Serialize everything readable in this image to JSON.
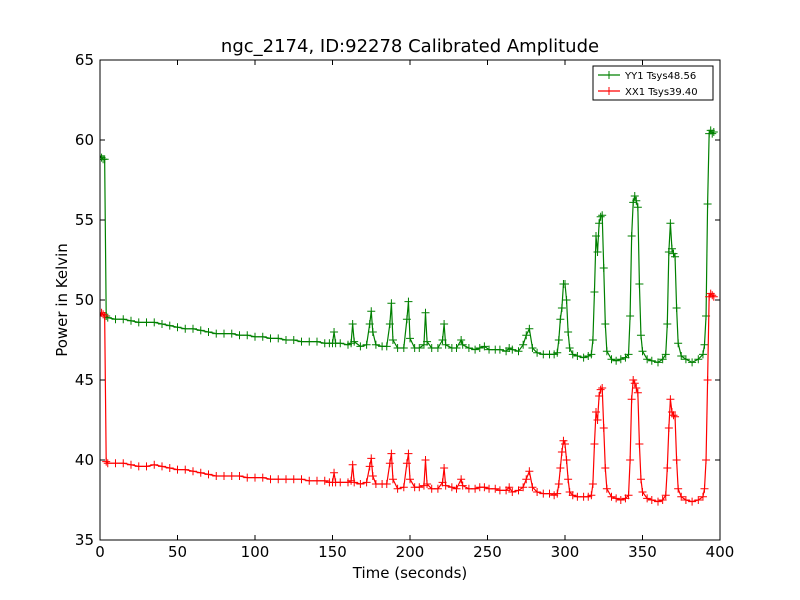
{
  "chart_data": {
    "type": "line",
    "title": "ngc_2174, ID:92278 Calibrated Amplitude",
    "xlabel": "Time (seconds)",
    "ylabel": "Power in Kelvin",
    "xlim": [
      0,
      400
    ],
    "ylim": [
      35,
      65
    ],
    "xticks": [
      0,
      50,
      100,
      150,
      200,
      250,
      300,
      350,
      400
    ],
    "yticks": [
      35,
      40,
      45,
      50,
      55,
      60,
      65
    ],
    "grid": false,
    "legend_position": "top-right",
    "marker": "+",
    "series": [
      {
        "name": "YY1 Tsys48.56",
        "color": "#008000",
        "points": [
          [
            0,
            59.0
          ],
          [
            1,
            58.9
          ],
          [
            2,
            58.8
          ],
          [
            3,
            58.8
          ],
          [
            4,
            49.0
          ],
          [
            5,
            48.9
          ],
          [
            10,
            48.8
          ],
          [
            15,
            48.8
          ],
          [
            20,
            48.7
          ],
          [
            25,
            48.6
          ],
          [
            30,
            48.6
          ],
          [
            35,
            48.6
          ],
          [
            40,
            48.5
          ],
          [
            45,
            48.4
          ],
          [
            50,
            48.3
          ],
          [
            55,
            48.2
          ],
          [
            60,
            48.2
          ],
          [
            65,
            48.1
          ],
          [
            70,
            48.0
          ],
          [
            75,
            47.9
          ],
          [
            80,
            47.9
          ],
          [
            85,
            47.9
          ],
          [
            90,
            47.8
          ],
          [
            95,
            47.8
          ],
          [
            100,
            47.7
          ],
          [
            105,
            47.7
          ],
          [
            110,
            47.6
          ],
          [
            115,
            47.6
          ],
          [
            120,
            47.5
          ],
          [
            125,
            47.5
          ],
          [
            130,
            47.4
          ],
          [
            135,
            47.4
          ],
          [
            140,
            47.4
          ],
          [
            145,
            47.3
          ],
          [
            148,
            47.3
          ],
          [
            150,
            47.3
          ],
          [
            151,
            48.0
          ],
          [
            152,
            47.3
          ],
          [
            155,
            47.3
          ],
          [
            160,
            47.2
          ],
          [
            162,
            47.3
          ],
          [
            163,
            48.5
          ],
          [
            164,
            47.4
          ],
          [
            168,
            47.1
          ],
          [
            172,
            47.2
          ],
          [
            174,
            48.5
          ],
          [
            175,
            49.3
          ],
          [
            176,
            48.0
          ],
          [
            178,
            47.2
          ],
          [
            182,
            47.1
          ],
          [
            185,
            47.1
          ],
          [
            187,
            48.5
          ],
          [
            188,
            49.8
          ],
          [
            189,
            47.5
          ],
          [
            192,
            47.0
          ],
          [
            196,
            47.0
          ],
          [
            198,
            48.8
          ],
          [
            199,
            49.9
          ],
          [
            200,
            47.6
          ],
          [
            203,
            47.0
          ],
          [
            206,
            47.0
          ],
          [
            209,
            47.2
          ],
          [
            210,
            49.2
          ],
          [
            211,
            47.4
          ],
          [
            214,
            47.0
          ],
          [
            218,
            47.0
          ],
          [
            221,
            47.5
          ],
          [
            222,
            48.5
          ],
          [
            223,
            47.2
          ],
          [
            227,
            47.0
          ],
          [
            230,
            47.0
          ],
          [
            233,
            47.5
          ],
          [
            234,
            47.2
          ],
          [
            238,
            47.0
          ],
          [
            242,
            46.9
          ],
          [
            245,
            47.0
          ],
          [
            248,
            47.1
          ],
          [
            251,
            46.9
          ],
          [
            255,
            46.9
          ],
          [
            258,
            46.9
          ],
          [
            262,
            46.8
          ],
          [
            264,
            47.0
          ],
          [
            266,
            46.9
          ],
          [
            270,
            46.8
          ],
          [
            273,
            47.2
          ],
          [
            275,
            47.8
          ],
          [
            277,
            48.2
          ],
          [
            279,
            47.0
          ],
          [
            282,
            46.7
          ],
          [
            286,
            46.6
          ],
          [
            290,
            46.6
          ],
          [
            293,
            46.6
          ],
          [
            295,
            46.7
          ],
          [
            296,
            47.5
          ],
          [
            297,
            48.8
          ],
          [
            298,
            49.5
          ],
          [
            299,
            51.0
          ],
          [
            300,
            51.0
          ],
          [
            301,
            50.0
          ],
          [
            302,
            48.0
          ],
          [
            303,
            47.0
          ],
          [
            305,
            46.6
          ],
          [
            308,
            46.5
          ],
          [
            312,
            46.4
          ],
          [
            315,
            46.5
          ],
          [
            317,
            46.6
          ],
          [
            318,
            47.5
          ],
          [
            319,
            50.5
          ],
          [
            320,
            54.0
          ],
          [
            321,
            53.0
          ],
          [
            322,
            54.8
          ],
          [
            323,
            55.2
          ],
          [
            324,
            55.3
          ],
          [
            325,
            52.0
          ],
          [
            326,
            48.5
          ],
          [
            327,
            46.8
          ],
          [
            330,
            46.3
          ],
          [
            333,
            46.2
          ],
          [
            336,
            46.3
          ],
          [
            339,
            46.4
          ],
          [
            341,
            46.6
          ],
          [
            342,
            49.0
          ],
          [
            343,
            54.0
          ],
          [
            344,
            56.1
          ],
          [
            345,
            56.5
          ],
          [
            346,
            56.2
          ],
          [
            347,
            55.8
          ],
          [
            348,
            51.0
          ],
          [
            349,
            47.8
          ],
          [
            350,
            46.8
          ],
          [
            353,
            46.3
          ],
          [
            356,
            46.2
          ],
          [
            360,
            46.1
          ],
          [
            363,
            46.3
          ],
          [
            365,
            46.6
          ],
          [
            366,
            48.5
          ],
          [
            367,
            53.0
          ],
          [
            368,
            54.8
          ],
          [
            369,
            53.2
          ],
          [
            370,
            52.9
          ],
          [
            371,
            52.7
          ],
          [
            372,
            49.5
          ],
          [
            373,
            47.3
          ],
          [
            375,
            46.5
          ],
          [
            378,
            46.3
          ],
          [
            382,
            46.1
          ],
          [
            386,
            46.3
          ],
          [
            389,
            46.6
          ],
          [
            390,
            47.2
          ],
          [
            391,
            49.0
          ],
          [
            392,
            56.0
          ],
          [
            393,
            60.4
          ],
          [
            394,
            60.6
          ],
          [
            395,
            60.4
          ],
          [
            396,
            60.5
          ]
        ]
      },
      {
        "name": "XX1 Tsys39.40",
        "color": "#ff0000",
        "points": [
          [
            0,
            49.0
          ],
          [
            1,
            49.2
          ],
          [
            2,
            49.1
          ],
          [
            3,
            49.0
          ],
          [
            4,
            39.9
          ],
          [
            5,
            39.8
          ],
          [
            10,
            39.8
          ],
          [
            15,
            39.8
          ],
          [
            20,
            39.7
          ],
          [
            25,
            39.6
          ],
          [
            30,
            39.6
          ],
          [
            35,
            39.7
          ],
          [
            40,
            39.6
          ],
          [
            45,
            39.5
          ],
          [
            50,
            39.4
          ],
          [
            55,
            39.4
          ],
          [
            60,
            39.3
          ],
          [
            65,
            39.2
          ],
          [
            70,
            39.1
          ],
          [
            75,
            39.0
          ],
          [
            80,
            39.0
          ],
          [
            85,
            39.0
          ],
          [
            90,
            39.0
          ],
          [
            95,
            38.9
          ],
          [
            100,
            38.9
          ],
          [
            105,
            38.9
          ],
          [
            110,
            38.8
          ],
          [
            115,
            38.8
          ],
          [
            120,
            38.8
          ],
          [
            125,
            38.8
          ],
          [
            130,
            38.8
          ],
          [
            135,
            38.7
          ],
          [
            140,
            38.7
          ],
          [
            145,
            38.7
          ],
          [
            148,
            38.6
          ],
          [
            150,
            38.6
          ],
          [
            151,
            39.2
          ],
          [
            152,
            38.6
          ],
          [
            155,
            38.6
          ],
          [
            160,
            38.6
          ],
          [
            162,
            38.7
          ],
          [
            163,
            39.7
          ],
          [
            164,
            38.6
          ],
          [
            168,
            38.5
          ],
          [
            172,
            38.6
          ],
          [
            174,
            39.6
          ],
          [
            175,
            40.1
          ],
          [
            176,
            39.0
          ],
          [
            178,
            38.5
          ],
          [
            182,
            38.5
          ],
          [
            185,
            38.5
          ],
          [
            187,
            39.8
          ],
          [
            188,
            40.4
          ],
          [
            189,
            38.8
          ],
          [
            192,
            38.2
          ],
          [
            196,
            38.3
          ],
          [
            198,
            39.8
          ],
          [
            199,
            40.4
          ],
          [
            200,
            38.8
          ],
          [
            203,
            38.3
          ],
          [
            206,
            38.3
          ],
          [
            209,
            38.4
          ],
          [
            210,
            40.0
          ],
          [
            211,
            38.5
          ],
          [
            214,
            38.2
          ],
          [
            218,
            38.2
          ],
          [
            221,
            38.6
          ],
          [
            222,
            39.5
          ],
          [
            223,
            38.4
          ],
          [
            227,
            38.3
          ],
          [
            230,
            38.2
          ],
          [
            233,
            38.8
          ],
          [
            234,
            38.4
          ],
          [
            238,
            38.2
          ],
          [
            242,
            38.2
          ],
          [
            245,
            38.3
          ],
          [
            248,
            38.3
          ],
          [
            251,
            38.2
          ],
          [
            255,
            38.2
          ],
          [
            258,
            38.1
          ],
          [
            262,
            38.1
          ],
          [
            264,
            38.3
          ],
          [
            266,
            38.0
          ],
          [
            270,
            38.1
          ],
          [
            273,
            38.3
          ],
          [
            275,
            38.8
          ],
          [
            277,
            39.3
          ],
          [
            279,
            38.3
          ],
          [
            282,
            38.0
          ],
          [
            286,
            37.9
          ],
          [
            290,
            37.9
          ],
          [
            293,
            37.8
          ],
          [
            295,
            37.9
          ],
          [
            296,
            38.5
          ],
          [
            297,
            39.5
          ],
          [
            298,
            40.5
          ],
          [
            299,
            41.2
          ],
          [
            300,
            41.0
          ],
          [
            301,
            40.0
          ],
          [
            302,
            38.8
          ],
          [
            303,
            38.0
          ],
          [
            305,
            37.8
          ],
          [
            308,
            37.7
          ],
          [
            312,
            37.7
          ],
          [
            315,
            37.7
          ],
          [
            317,
            37.8
          ],
          [
            318,
            38.5
          ],
          [
            319,
            41.0
          ],
          [
            320,
            43.0
          ],
          [
            321,
            42.5
          ],
          [
            322,
            44.0
          ],
          [
            323,
            44.4
          ],
          [
            324,
            44.5
          ],
          [
            325,
            42.0
          ],
          [
            326,
            39.5
          ],
          [
            327,
            38.2
          ],
          [
            330,
            37.7
          ],
          [
            333,
            37.6
          ],
          [
            336,
            37.5
          ],
          [
            339,
            37.6
          ],
          [
            341,
            37.8
          ],
          [
            342,
            40.0
          ],
          [
            343,
            43.8
          ],
          [
            344,
            45.0
          ],
          [
            345,
            44.8
          ],
          [
            346,
            44.5
          ],
          [
            347,
            44.2
          ],
          [
            348,
            41.0
          ],
          [
            349,
            38.8
          ],
          [
            350,
            38.0
          ],
          [
            353,
            37.6
          ],
          [
            356,
            37.5
          ],
          [
            360,
            37.4
          ],
          [
            363,
            37.5
          ],
          [
            365,
            37.8
          ],
          [
            366,
            39.5
          ],
          [
            367,
            42.0
          ],
          [
            368,
            43.8
          ],
          [
            369,
            43.0
          ],
          [
            370,
            42.8
          ],
          [
            371,
            42.7
          ],
          [
            372,
            40.0
          ],
          [
            373,
            38.2
          ],
          [
            375,
            37.7
          ],
          [
            378,
            37.5
          ],
          [
            382,
            37.4
          ],
          [
            386,
            37.5
          ],
          [
            389,
            37.7
          ],
          [
            390,
            38.2
          ],
          [
            391,
            40.0
          ],
          [
            392,
            45.0
          ],
          [
            393,
            50.2
          ],
          [
            394,
            50.4
          ],
          [
            395,
            50.3
          ],
          [
            396,
            50.2
          ]
        ]
      }
    ]
  }
}
